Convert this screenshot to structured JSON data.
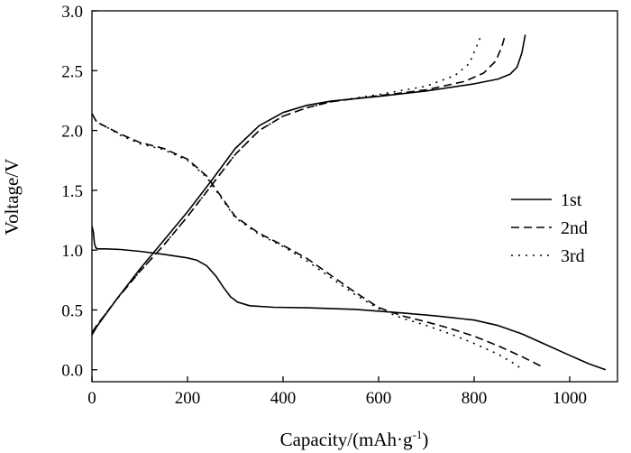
{
  "chart_data": {
    "type": "line",
    "xlabel": "Capacity/(mAh·g",
    "xlabel_sup": "-1",
    "xlabel_end": ")",
    "ylabel": "Voltage/V",
    "xlim": [
      0,
      1100
    ],
    "ylim": [
      -0.1,
      3.0
    ],
    "x_ticks": [
      0,
      200,
      400,
      600,
      800,
      1000
    ],
    "y_ticks": [
      0.0,
      0.5,
      1.0,
      1.5,
      2.0,
      2.5,
      3.0
    ],
    "x_tick_labels": [
      "0",
      "200",
      "400",
      "600",
      "800",
      "1000"
    ],
    "y_tick_labels": [
      "0.0",
      "0.5",
      "1.0",
      "1.5",
      "2.0",
      "2.5",
      "3.0"
    ],
    "grid": false,
    "legend_position": "center-right",
    "series": [
      {
        "name": "1st",
        "style": "solid",
        "curves": [
          [
            [
              0,
              1.2
            ],
            [
              3,
              1.15
            ],
            [
              5,
              1.06
            ],
            [
              8,
              1.02
            ],
            [
              12,
              1.01
            ],
            [
              30,
              1.01
            ],
            [
              60,
              1.005
            ],
            [
              100,
              0.99
            ],
            [
              150,
              0.965
            ],
            [
              200,
              0.935
            ],
            [
              220,
              0.915
            ],
            [
              240,
              0.87
            ],
            [
              260,
              0.78
            ],
            [
              275,
              0.69
            ],
            [
              290,
              0.61
            ],
            [
              305,
              0.565
            ],
            [
              330,
              0.535
            ],
            [
              380,
              0.522
            ],
            [
              450,
              0.518
            ],
            [
              550,
              0.505
            ],
            [
              650,
              0.475
            ],
            [
              720,
              0.45
            ],
            [
              800,
              0.415
            ],
            [
              850,
              0.37
            ],
            [
              900,
              0.3
            ],
            [
              950,
              0.21
            ],
            [
              1000,
              0.12
            ],
            [
              1040,
              0.05
            ],
            [
              1075,
              0.0
            ]
          ],
          [
            [
              0,
              0.29
            ],
            [
              10,
              0.36
            ],
            [
              50,
              0.58
            ],
            [
              100,
              0.84
            ],
            [
              150,
              1.08
            ],
            [
              200,
              1.32
            ],
            [
              250,
              1.58
            ],
            [
              300,
              1.85
            ],
            [
              350,
              2.04
            ],
            [
              400,
              2.15
            ],
            [
              450,
              2.21
            ],
            [
              500,
              2.245
            ],
            [
              600,
              2.285
            ],
            [
              700,
              2.33
            ],
            [
              800,
              2.39
            ],
            [
              850,
              2.43
            ],
            [
              875,
              2.47
            ],
            [
              890,
              2.53
            ],
            [
              900,
              2.65
            ],
            [
              907,
              2.8
            ]
          ]
        ]
      },
      {
        "name": "2nd",
        "style": "dashed",
        "curves": [
          [
            [
              0,
              2.14
            ],
            [
              10,
              2.07
            ],
            [
              30,
              2.03
            ],
            [
              60,
              1.97
            ],
            [
              100,
              1.9
            ],
            [
              150,
              1.85
            ],
            [
              200,
              1.76
            ],
            [
              240,
              1.62
            ],
            [
              270,
              1.45
            ],
            [
              300,
              1.28
            ],
            [
              350,
              1.14
            ],
            [
              400,
              1.04
            ],
            [
              450,
              0.93
            ],
            [
              500,
              0.79
            ],
            [
              550,
              0.65
            ],
            [
              600,
              0.52
            ],
            [
              650,
              0.45
            ],
            [
              700,
              0.4
            ],
            [
              750,
              0.345
            ],
            [
              800,
              0.28
            ],
            [
              850,
              0.2
            ],
            [
              900,
              0.11
            ],
            [
              930,
              0.05
            ],
            [
              945,
              0.02
            ]
          ],
          [
            [
              0,
              0.31
            ],
            [
              10,
              0.37
            ],
            [
              50,
              0.58
            ],
            [
              100,
              0.82
            ],
            [
              150,
              1.04
            ],
            [
              200,
              1.28
            ],
            [
              250,
              1.54
            ],
            [
              300,
              1.8
            ],
            [
              350,
              2.0
            ],
            [
              400,
              2.12
            ],
            [
              450,
              2.19
            ],
            [
              500,
              2.24
            ],
            [
              600,
              2.29
            ],
            [
              700,
              2.34
            ],
            [
              780,
              2.41
            ],
            [
              820,
              2.48
            ],
            [
              845,
              2.58
            ],
            [
              858,
              2.7
            ],
            [
              865,
              2.8
            ]
          ]
        ]
      },
      {
        "name": "3rd",
        "style": "dotted",
        "curves": [
          [
            [
              0,
              2.14
            ],
            [
              10,
              2.07
            ],
            [
              30,
              2.03
            ],
            [
              60,
              1.96
            ],
            [
              100,
              1.89
            ],
            [
              150,
              1.84
            ],
            [
              200,
              1.75
            ],
            [
              240,
              1.61
            ],
            [
              270,
              1.44
            ],
            [
              300,
              1.27
            ],
            [
              350,
              1.13
            ],
            [
              400,
              1.03
            ],
            [
              450,
              0.91
            ],
            [
              500,
              0.77
            ],
            [
              550,
              0.63
            ],
            [
              600,
              0.51
            ],
            [
              650,
              0.43
            ],
            [
              700,
              0.37
            ],
            [
              750,
              0.3
            ],
            [
              800,
              0.22
            ],
            [
              850,
              0.13
            ],
            [
              880,
              0.06
            ],
            [
              895,
              0.02
            ]
          ],
          [
            [
              0,
              0.31
            ],
            [
              10,
              0.37
            ],
            [
              50,
              0.58
            ],
            [
              100,
              0.82
            ],
            [
              150,
              1.04
            ],
            [
              200,
              1.28
            ],
            [
              250,
              1.54
            ],
            [
              300,
              1.8
            ],
            [
              350,
              2.0
            ],
            [
              400,
              2.12
            ],
            [
              450,
              2.19
            ],
            [
              500,
              2.24
            ],
            [
              600,
              2.3
            ],
            [
              700,
              2.37
            ],
            [
              760,
              2.46
            ],
            [
              790,
              2.56
            ],
            [
              805,
              2.7
            ],
            [
              815,
              2.8
            ]
          ]
        ]
      }
    ]
  }
}
